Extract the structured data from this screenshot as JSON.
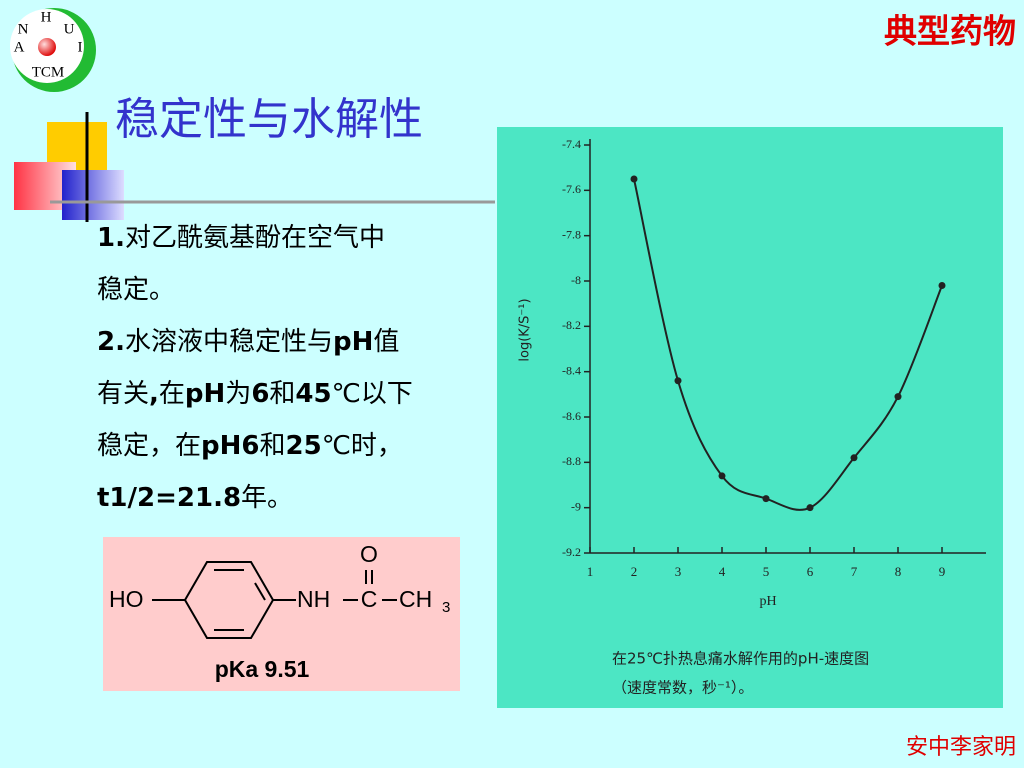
{
  "logo": {
    "top": "H",
    "right_top": "U",
    "right": "I",
    "left_top": "N",
    "left": "A",
    "bottom": "TCM"
  },
  "header": {
    "tag": "典型药物",
    "title": "稳定性与水解性"
  },
  "body": {
    "lines": [
      [
        {
          "text": "1.",
          "bold": true
        },
        {
          "text": "对乙酰氨基酚在空气中",
          "bold": false
        }
      ],
      [
        {
          "text": "稳定。",
          "bold": false
        }
      ],
      [
        {
          "text": "2.",
          "bold": true
        },
        {
          "text": "水溶液中稳定性与",
          "bold": false
        },
        {
          "text": "pH",
          "bold": true
        },
        {
          "text": "值",
          "bold": false
        }
      ],
      [
        {
          "text": "有关",
          "bold": false
        },
        {
          "text": ",",
          "bold": true
        },
        {
          "text": "在",
          "bold": false
        },
        {
          "text": "pH",
          "bold": true
        },
        {
          "text": "为",
          "bold": false
        },
        {
          "text": "6",
          "bold": true
        },
        {
          "text": "和",
          "bold": false
        },
        {
          "text": "45",
          "bold": true
        },
        {
          "text": "℃以下",
          "bold": false
        }
      ],
      [
        {
          "text": "稳定，在",
          "bold": false
        },
        {
          "text": "pH6",
          "bold": true
        },
        {
          "text": "和",
          "bold": false
        },
        {
          "text": "25",
          "bold": true
        },
        {
          "text": "℃时，",
          "bold": false
        }
      ],
      [
        {
          "text": "t1/2=21.8",
          "bold": true
        },
        {
          "text": "年。",
          "bold": false
        }
      ]
    ]
  },
  "structure": {
    "hydroxyl": "HO",
    "amine": "NH",
    "carbon": "C",
    "methyl": "CH",
    "methyl_sub": "3",
    "oxygen": "O",
    "pka": "pKa 9.51"
  },
  "chart_data": {
    "type": "line",
    "y_label": "log(K/S⁻¹)",
    "x_label": "pH",
    "caption": [
      "在25℃扑热息痛水解作用的pH-速度图",
      "（速度常数，秒⁻¹）。"
    ],
    "x": [
      2,
      3,
      4,
      5,
      6,
      7,
      8,
      9
    ],
    "values": [
      -7.55,
      -8.44,
      -8.86,
      -8.96,
      -9.0,
      -8.78,
      -8.51,
      -8.02
    ],
    "color": "#222222",
    "xlim": [
      1,
      10
    ],
    "ylim": [
      -9.2,
      -7.4
    ],
    "xticks": [
      1,
      2,
      3,
      4,
      5,
      6,
      7,
      8,
      9
    ],
    "yticks": [
      -7.4,
      -7.6,
      -7.8,
      -8.0,
      -8.2,
      -8.4,
      -8.6,
      -8.8,
      -9.0,
      -9.2
    ]
  },
  "footer": "安中李家明"
}
